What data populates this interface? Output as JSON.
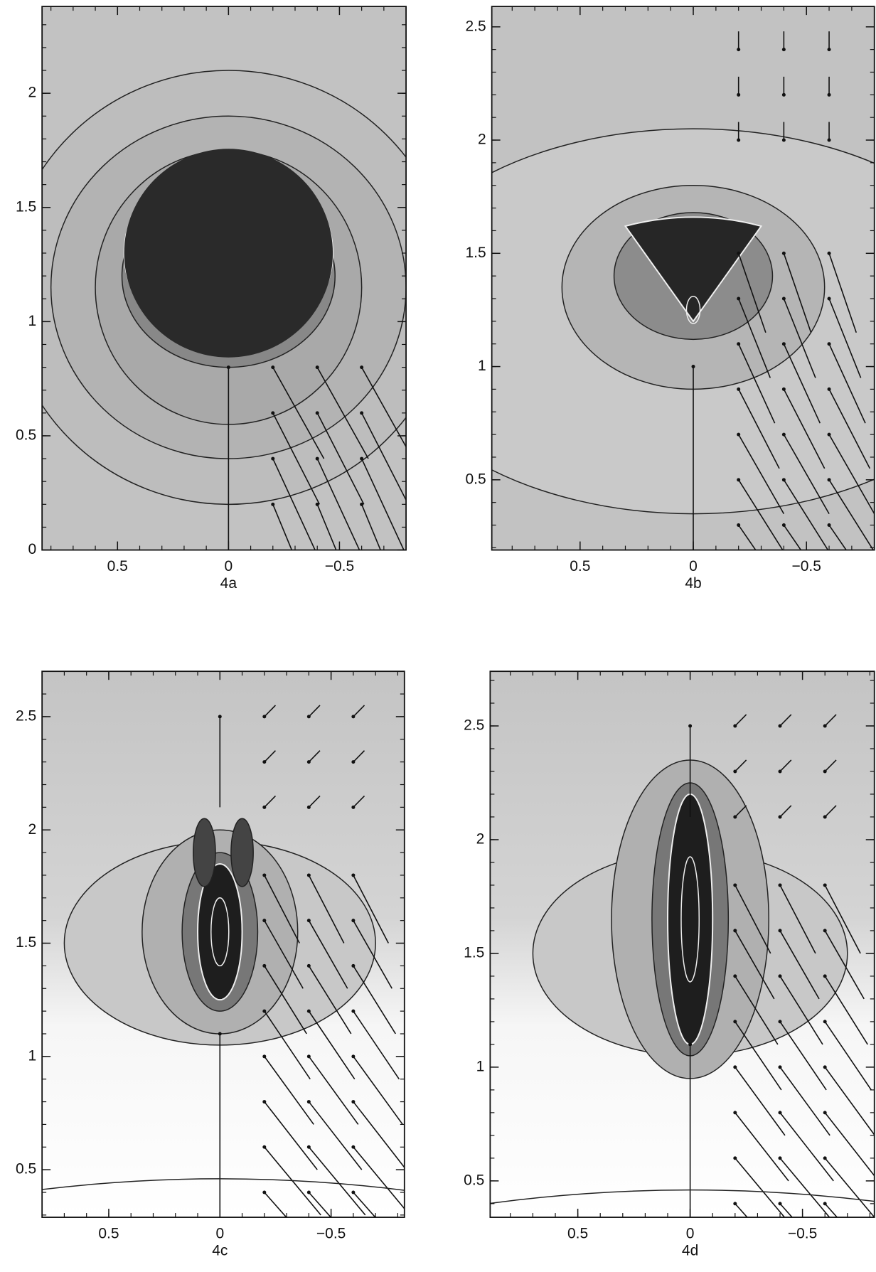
{
  "chart_data": [
    {
      "type": "contour",
      "x_label": "4a",
      "xlim": [
        0.84,
        -0.8
      ],
      "ylim": [
        0,
        2.38
      ],
      "xticks": [
        0.5,
        0,
        {
          "value": -0.5,
          "label": "−0.5"
        }
      ],
      "yticks": [
        0,
        0.5,
        1,
        1.5,
        2
      ]
    },
    {
      "type": "contour",
      "x_label": "4b",
      "xlim": [
        0.89,
        -0.8
      ],
      "ylim": [
        0.19,
        2.59
      ],
      "xticks": [
        0.5,
        0,
        {
          "value": -0.5,
          "label": "−0.5"
        }
      ],
      "yticks": [
        0.5,
        1,
        1.5,
        2,
        2.5
      ]
    },
    {
      "type": "contour",
      "x_label": "4c",
      "xlim": [
        0.8,
        -0.83
      ],
      "ylim": [
        0.29,
        2.7
      ],
      "xticks": [
        0.5,
        0,
        {
          "value": -0.5,
          "label": "−0.5"
        }
      ],
      "yticks": [
        0.5,
        1,
        1.5,
        2,
        2.5
      ]
    },
    {
      "type": "contour",
      "x_label": "4d",
      "xlim": [
        0.89,
        -0.82
      ],
      "ylim": [
        0.34,
        2.74
      ],
      "xticks": [
        0.5,
        0,
        {
          "value": -0.5,
          "label": "−0.5"
        }
      ],
      "yticks": [
        0.5,
        1,
        1.5,
        2,
        2.5
      ]
    }
  ]
}
